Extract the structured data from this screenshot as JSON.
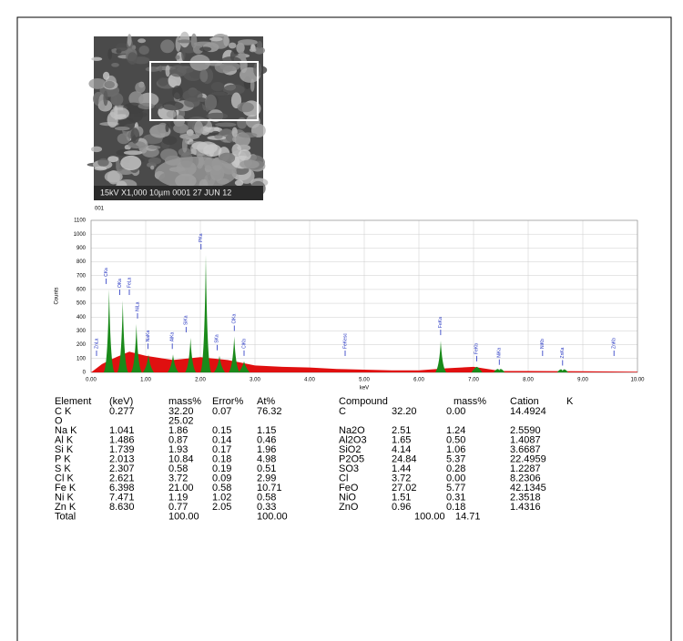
{
  "figure": {
    "sem_caption": "15kV   X1,000   10µm   0001   27 JUN 12",
    "spectrum": {
      "type": "spectrum",
      "label": "001",
      "y_label": "Counts",
      "x_label": "keV",
      "xlim": [
        0,
        10
      ],
      "ylim": [
        0,
        1100
      ],
      "xticks": [
        {
          "value": 0,
          "label": "0.00"
        },
        {
          "value": 1,
          "label": "1.00"
        },
        {
          "value": 2,
          "label": "2.00"
        },
        {
          "value": 3,
          "label": "3.00"
        },
        {
          "value": 4,
          "label": "4.00"
        },
        {
          "value": 5,
          "label": "5.00"
        },
        {
          "value": 6,
          "label": "6.00"
        },
        {
          "value": 7,
          "label": "7.00"
        },
        {
          "value": 8,
          "label": "8.00"
        },
        {
          "value": 9,
          "label": "9.00"
        },
        {
          "value": 10,
          "label": "10.00"
        }
      ],
      "yticks": [
        0,
        100,
        200,
        300,
        400,
        500,
        600,
        700,
        800,
        900,
        1000,
        1100
      ],
      "peak_color": "#1a8a1a",
      "background_color": "#e01010",
      "peaks": {
        "x": [
          0.33,
          0.58,
          0.83,
          1.05,
          1.5,
          1.82,
          2.1,
          2.35,
          2.62,
          2.8,
          6.4,
          7.06,
          7.47,
          8.63
        ],
        "counts": [
          600,
          520,
          350,
          130,
          130,
          250,
          850,
          120,
          260,
          80,
          230,
          40,
          15,
          10
        ]
      },
      "background": {
        "x": [
          0,
          0.2,
          0.4,
          0.7,
          1.0,
          1.5,
          2.0,
          2.5,
          3.0,
          3.5,
          4.0,
          4.5,
          5.0,
          5.5,
          6.0,
          6.5,
          7.0,
          7.5,
          8.0,
          9.0,
          10.0
        ],
        "counts": [
          0,
          60,
          100,
          150,
          120,
          90,
          110,
          90,
          50,
          40,
          35,
          25,
          20,
          15,
          15,
          30,
          40,
          10,
          10,
          8,
          5
        ]
      },
      "peak_labels": {
        "text": [
          "ZnLa",
          "CKa",
          "OKa",
          "FeLa",
          "NiLa",
          "NaKa",
          "AlKa",
          "SiKa",
          "PKa",
          "SKa",
          "ClKa",
          "ClKb",
          "FeKesc",
          "FeKa",
          "FeKb",
          "NiKa",
          "NiKb",
          "ZnKa",
          "ZnKb"
        ],
        "x": [
          0.1,
          0.277,
          0.525,
          0.7,
          0.85,
          1.041,
          1.486,
          1.739,
          2.013,
          2.307,
          2.621,
          2.8,
          4.65,
          6.398,
          7.057,
          7.471,
          8.264,
          8.63,
          9.57
        ]
      }
    },
    "table": {
      "header": [
        "Element",
        "(keV)",
        "mass%",
        "Error%",
        "At%",
        "Compound",
        "mass%",
        "Cation",
        "K"
      ],
      "rows": [
        [
          "C K",
          "0.277",
          "32.20",
          "0.07",
          "76.32",
          "C",
          "32.20",
          "0.00",
          "14.4924"
        ],
        [
          "O",
          null,
          "25.02",
          null,
          null,
          null,
          null,
          null,
          null
        ],
        [
          "Na K",
          "1.041",
          "1.86",
          "0.15",
          "1.15",
          "Na2O",
          "2.51",
          "1.24",
          "2.5590"
        ],
        [
          "Al K",
          "1.486",
          "0.87",
          "0.14",
          "0.46",
          "Al2O3",
          "1.65",
          "0.50",
          "1.4087"
        ],
        [
          "Si K",
          "1.739",
          "1.93",
          "0.17",
          "1.96",
          "SiO2",
          "4.14",
          "1.06",
          "3.6687"
        ],
        [
          "P K",
          "2.013",
          "10.84",
          "0.18",
          "4.98",
          "P2O5",
          "24.84",
          "5.37",
          "22.4959"
        ],
        [
          "S K",
          "2.307",
          "0.58",
          "0.19",
          "0.51",
          "SO3",
          "1.44",
          "0.28",
          "1.2287"
        ],
        [
          "Cl K",
          "2.621",
          "3.72",
          "0.09",
          "2.99",
          "Cl",
          "3.72",
          "0.00",
          "8.2306"
        ],
        [
          "Fe K",
          "6.398",
          "21.00",
          "0.58",
          "10.71",
          "FeO",
          "27.02",
          "5.77",
          "42.1345"
        ],
        [
          "Ni K",
          "7.471",
          "1.19",
          "1.02",
          "0.58",
          "NiO",
          "1.51",
          "0.31",
          "2.3518"
        ],
        [
          "Zn K",
          "8.630",
          "0.77",
          "2.05",
          "0.33",
          "ZnO",
          "0.96",
          "0.18",
          "1.4316"
        ],
        [
          "Total",
          null,
          "100.00",
          null,
          "100.00",
          null,
          "100.00",
          "14.71",
          null
        ]
      ]
    }
  }
}
